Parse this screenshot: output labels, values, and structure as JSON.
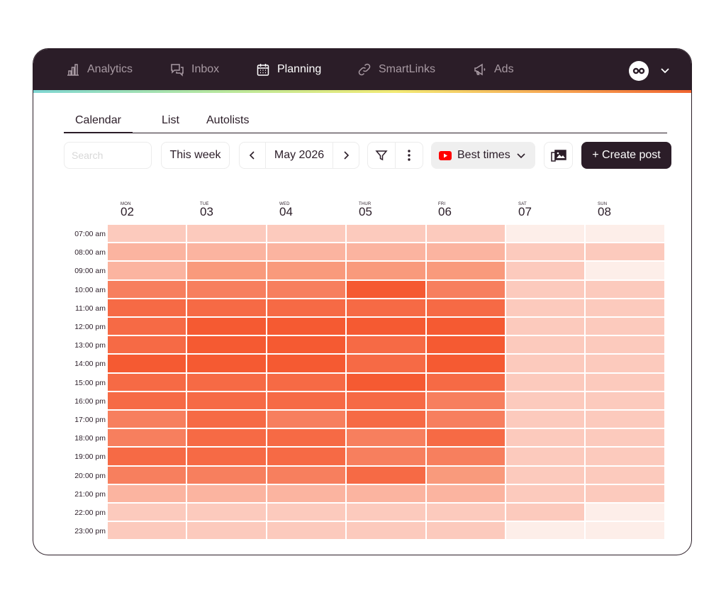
{
  "nav": {
    "items": [
      {
        "label": "Analytics",
        "icon": "bar-chart-icon",
        "active": false
      },
      {
        "label": "Inbox",
        "icon": "chat-bubbles-icon",
        "active": false
      },
      {
        "label": "Planning",
        "icon": "calendar-icon",
        "active": true
      },
      {
        "label": "SmartLinks",
        "icon": "link-icon",
        "active": false
      },
      {
        "label": "Ads",
        "icon": "megaphone-icon",
        "active": false
      }
    ],
    "account_icon": "infinity-logo-icon",
    "dropdown_icon": "chevron-down-icon"
  },
  "tabs": [
    {
      "label": "Calendar",
      "active": true
    },
    {
      "label": "List",
      "active": false
    },
    {
      "label": "Autolists",
      "active": false
    }
  ],
  "toolbar": {
    "search_placeholder": "Search",
    "range_label": "This week",
    "month_label": "May 2026",
    "best_times_label": "Best times",
    "create_label": "+ Create post",
    "icons": [
      "chevron-left-icon",
      "chevron-right-icon",
      "filter-icon",
      "more-vertical-icon",
      "youtube-icon",
      "chevron-down-icon",
      "media-library-icon"
    ]
  },
  "days": [
    {
      "abbr": "MON",
      "num": "02"
    },
    {
      "abbr": "TUE",
      "num": "03"
    },
    {
      "abbr": "WED",
      "num": "04"
    },
    {
      "abbr": "THUR",
      "num": "05"
    },
    {
      "abbr": "FRI",
      "num": "06"
    },
    {
      "abbr": "SAT",
      "num": "07"
    },
    {
      "abbr": "SUN",
      "num": "08"
    }
  ],
  "times": [
    "07:00 am",
    "08:00 am",
    "09:00 am",
    "10:00 am",
    "11:00 am",
    "12:00 pm",
    "13:00 pm",
    "14:00 pm",
    "15:00 pm",
    "16:00 pm",
    "17:00 pm",
    "18:00 pm",
    "19:00 pm",
    "20:00 pm",
    "21:00 pm",
    "22:00 pm",
    "23:00 pm"
  ],
  "heatmap": {
    "palette": [
      "#fdeee9",
      "#fccabd",
      "#fbb4a0",
      "#f99a7c",
      "#f77f5e",
      "#f66a45",
      "#f55a32"
    ],
    "levels": [
      [
        1,
        1,
        1,
        1,
        1,
        0,
        0
      ],
      [
        2,
        2,
        2,
        2,
        2,
        1,
        1
      ],
      [
        2,
        3,
        3,
        3,
        3,
        1,
        0
      ],
      [
        4,
        4,
        4,
        6,
        4,
        1,
        1
      ],
      [
        5,
        5,
        5,
        5,
        5,
        1,
        1
      ],
      [
        5,
        6,
        6,
        6,
        6,
        1,
        1
      ],
      [
        5,
        6,
        6,
        5,
        6,
        1,
        1
      ],
      [
        6,
        6,
        6,
        5,
        6,
        1,
        1
      ],
      [
        5,
        5,
        5,
        6,
        5,
        1,
        1
      ],
      [
        5,
        5,
        5,
        5,
        4,
        1,
        1
      ],
      [
        4,
        5,
        4,
        5,
        4,
        1,
        1
      ],
      [
        4,
        5,
        5,
        4,
        5,
        1,
        1
      ],
      [
        5,
        5,
        5,
        4,
        4,
        1,
        1
      ],
      [
        4,
        4,
        4,
        5,
        3,
        1,
        1
      ],
      [
        2,
        2,
        2,
        2,
        2,
        1,
        1
      ],
      [
        1,
        1,
        1,
        1,
        1,
        1,
        0
      ],
      [
        1,
        1,
        1,
        1,
        1,
        0,
        0
      ]
    ]
  },
  "colors": {
    "brand_dark": "#2b1d28",
    "youtube_red": "#ff0000"
  }
}
